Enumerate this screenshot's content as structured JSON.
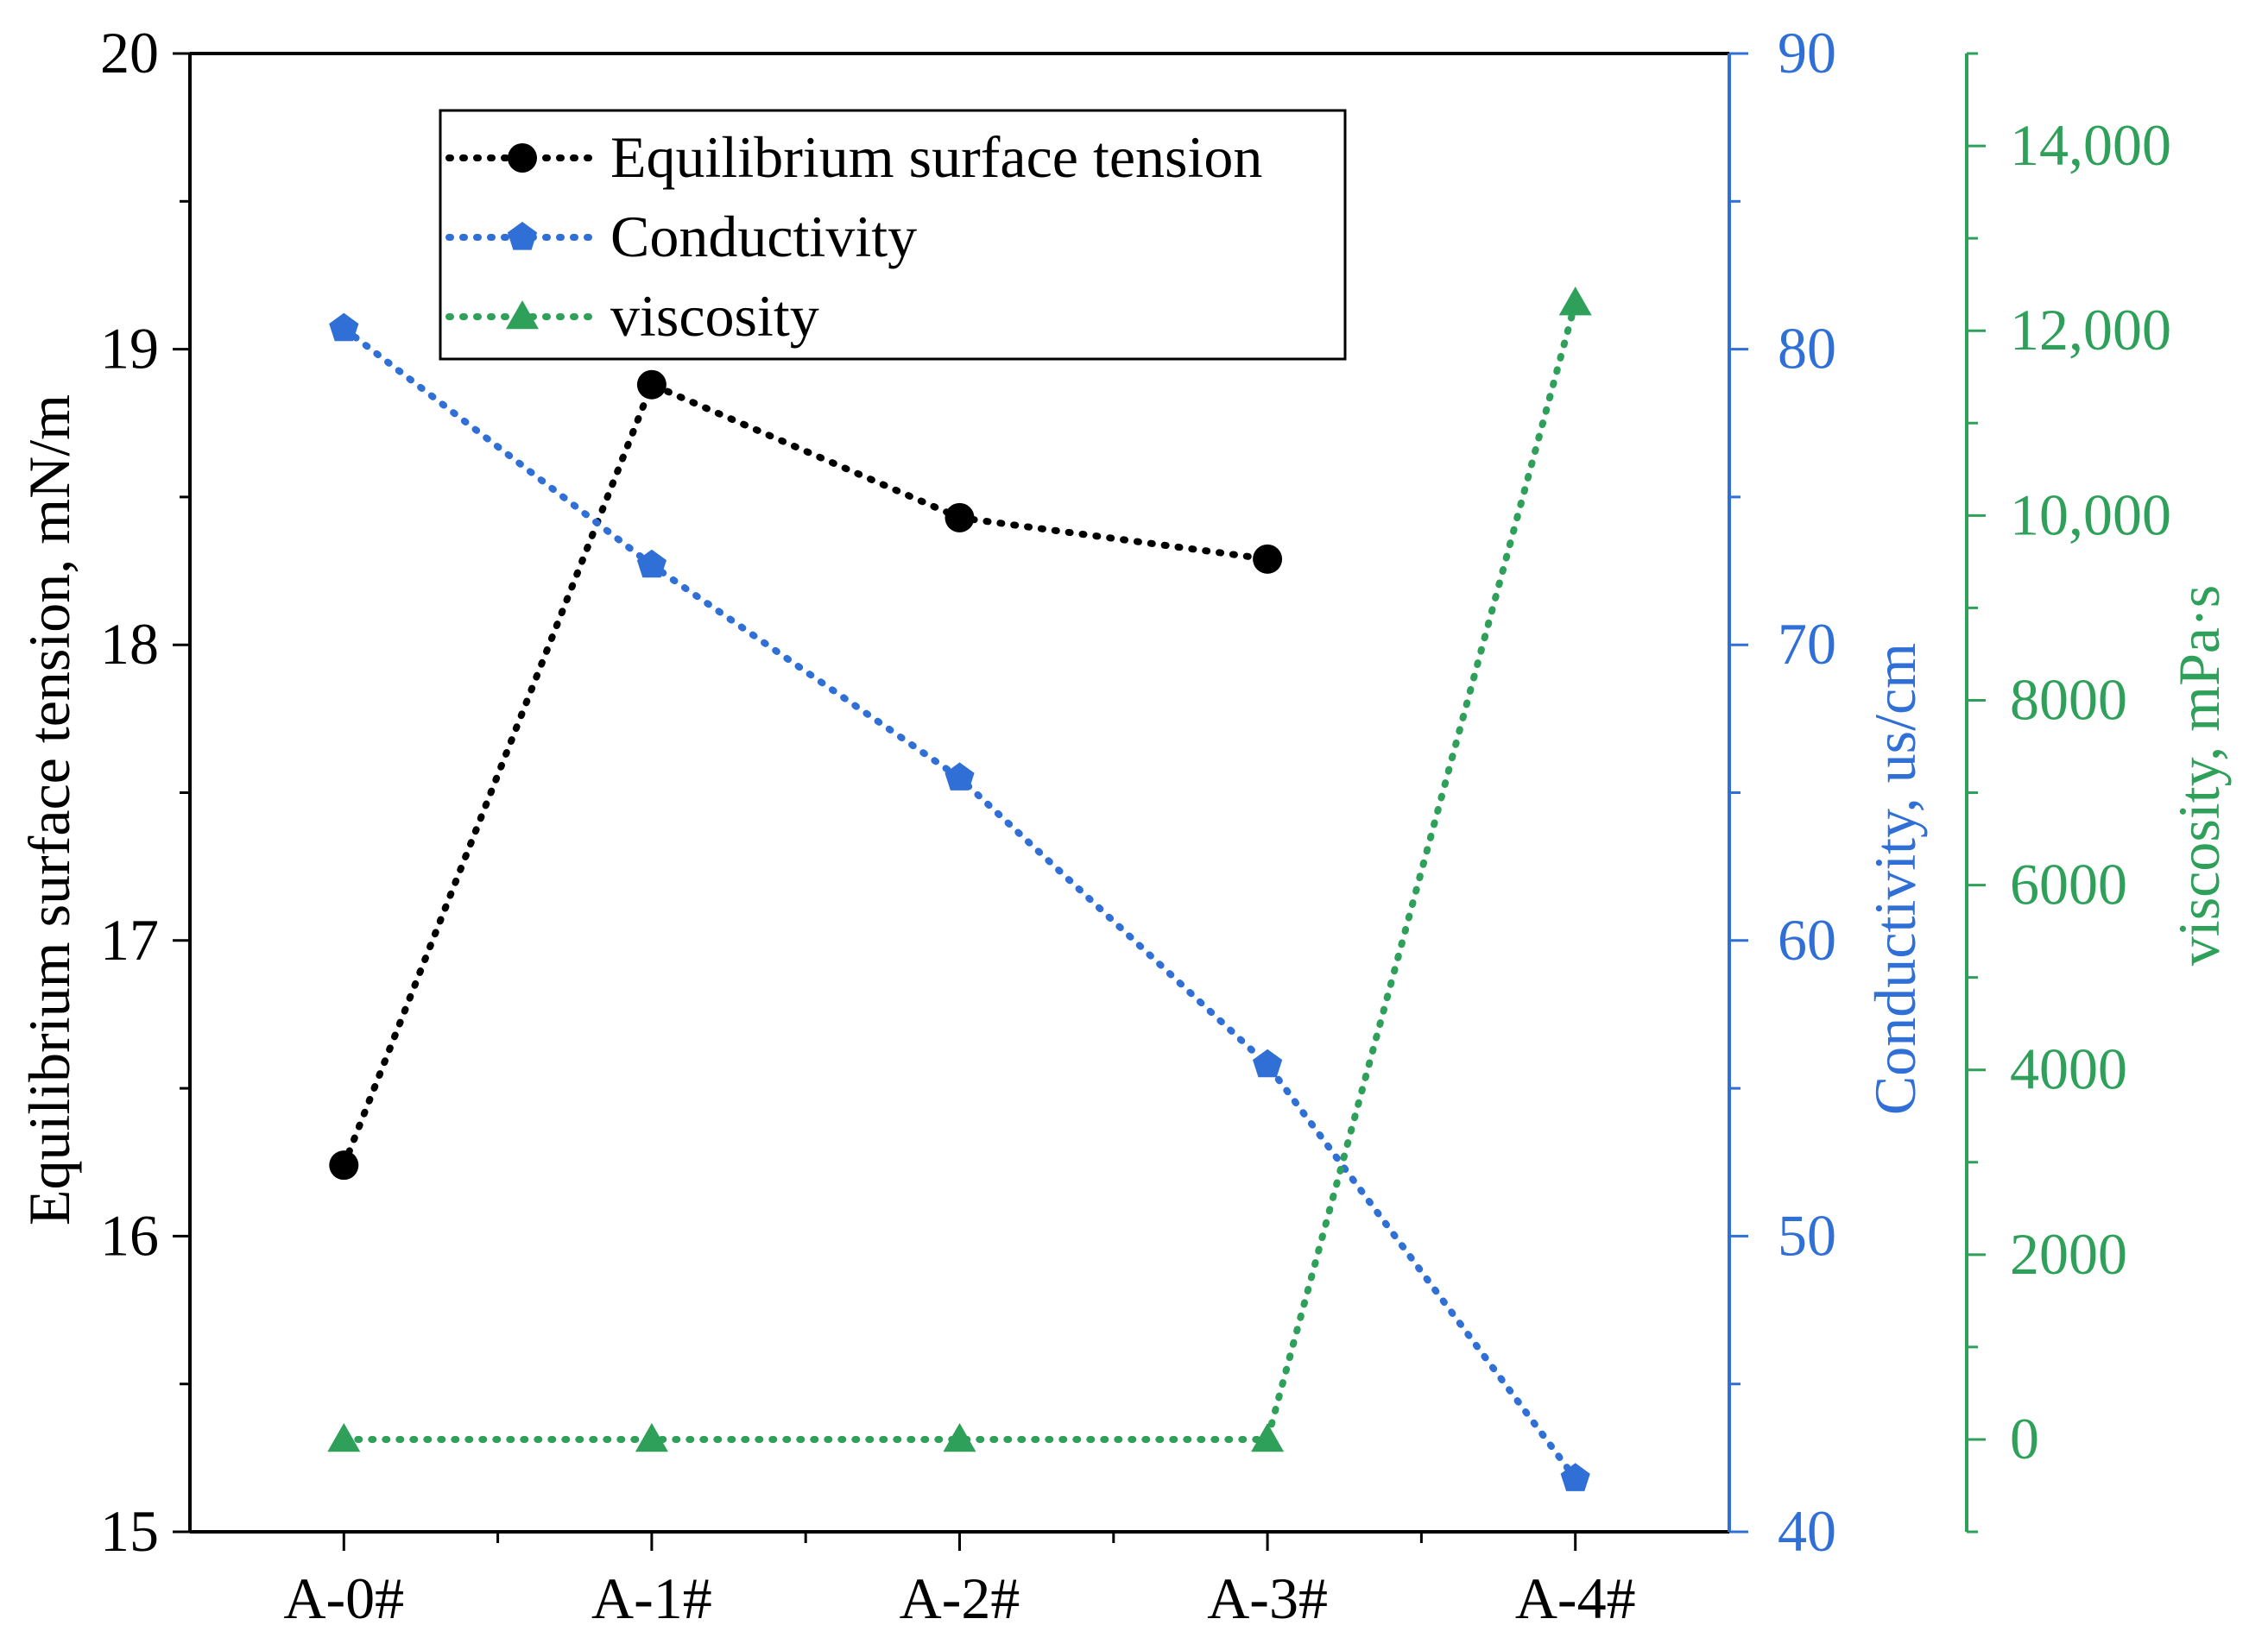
{
  "chart_data": {
    "type": "line",
    "categories": [
      "A-0#",
      "A-1#",
      "A-2#",
      "A-3#",
      "A-4#"
    ],
    "axes": {
      "left": {
        "label": "Equilibrium surface tension, mN/m",
        "ylim": [
          15,
          20
        ],
        "ticks": [
          15,
          16,
          17,
          18,
          19,
          20
        ],
        "tick_labels": [
          "15",
          "16",
          "17",
          "18",
          "19",
          "20"
        ],
        "color": "#000000"
      },
      "right1": {
        "label": "Conductivity, us/cm",
        "ylim": [
          40,
          90
        ],
        "ticks": [
          40,
          50,
          60,
          70,
          80,
          90
        ],
        "tick_labels": [
          "40",
          "50",
          "60",
          "70",
          "80",
          "90"
        ],
        "color": "#2f6fd6"
      },
      "right2": {
        "label": "viscosity, mPa·s",
        "ylim": [
          -1000,
          15000
        ],
        "ticks": [
          0,
          2000,
          4000,
          6000,
          8000,
          10000,
          12000,
          14000
        ],
        "tick_labels": [
          "0",
          "2000",
          "4000",
          "6000",
          "8000",
          "10,000",
          "12,000",
          "14,000"
        ],
        "color": "#2ea05a"
      }
    },
    "series": [
      {
        "name": "Equilibrium surface tension",
        "axis": "left",
        "values": [
          16.24,
          18.88,
          18.43,
          18.29,
          null
        ],
        "color": "#000000",
        "marker": "circle",
        "line_style": "dotted"
      },
      {
        "name": "Conductivity",
        "axis": "right1",
        "values": [
          80.7,
          72.7,
          65.5,
          55.8,
          41.8
        ],
        "color": "#2f6fd6",
        "marker": "pentagon",
        "line_style": "dotted"
      },
      {
        "name": "viscosity",
        "axis": "right2",
        "values": [
          0,
          0,
          0,
          0,
          12300
        ],
        "color": "#2ea05a",
        "marker": "triangle",
        "line_style": "dotted"
      }
    ],
    "legend": {
      "position": "top-left",
      "entries": [
        "Equilibrium surface tension",
        "Conductivity",
        "viscosity"
      ]
    },
    "grid": false
  }
}
